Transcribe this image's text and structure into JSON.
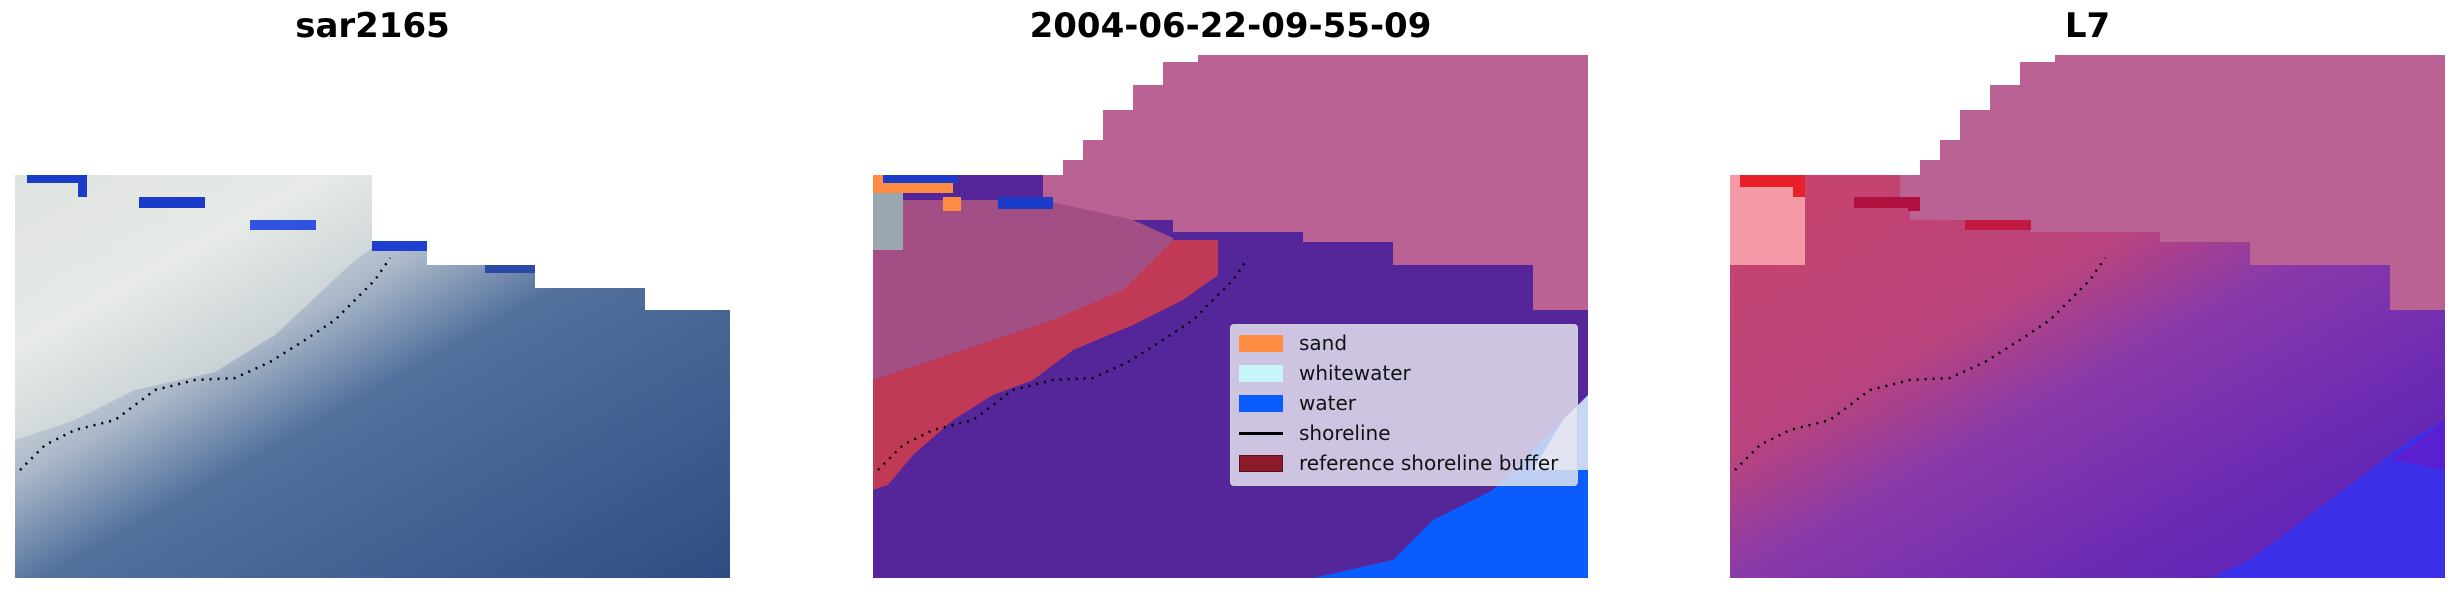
{
  "panels": [
    {
      "title": "sar2165"
    },
    {
      "title": "2004-06-22-09-55-09"
    },
    {
      "title": "L7"
    }
  ],
  "legend": {
    "items": [
      {
        "label": "sand",
        "color": "#ff8c42"
      },
      {
        "label": "whitewater",
        "color": "#c8f5f8"
      },
      {
        "label": "water",
        "color": "#0a5cff"
      },
      {
        "label": "shoreline",
        "color": "#000000"
      },
      {
        "label": "reference shoreline buffer",
        "color": "#8b1a2a"
      }
    ]
  },
  "colors": {
    "rgb_water": "#3b5a8c",
    "rgb_white": "#dfe4e6",
    "class_land": "#bb6294",
    "class_water": "#55259a",
    "class_buffer": "#c03a55",
    "class_ocean": "#0a5cff",
    "prob_land": "#c0457a",
    "prob_water": "#7a2fb0",
    "prob_sea": "#3a30e8",
    "mask_blue": "#1b3cc8",
    "mask_red": "#e8202a"
  }
}
